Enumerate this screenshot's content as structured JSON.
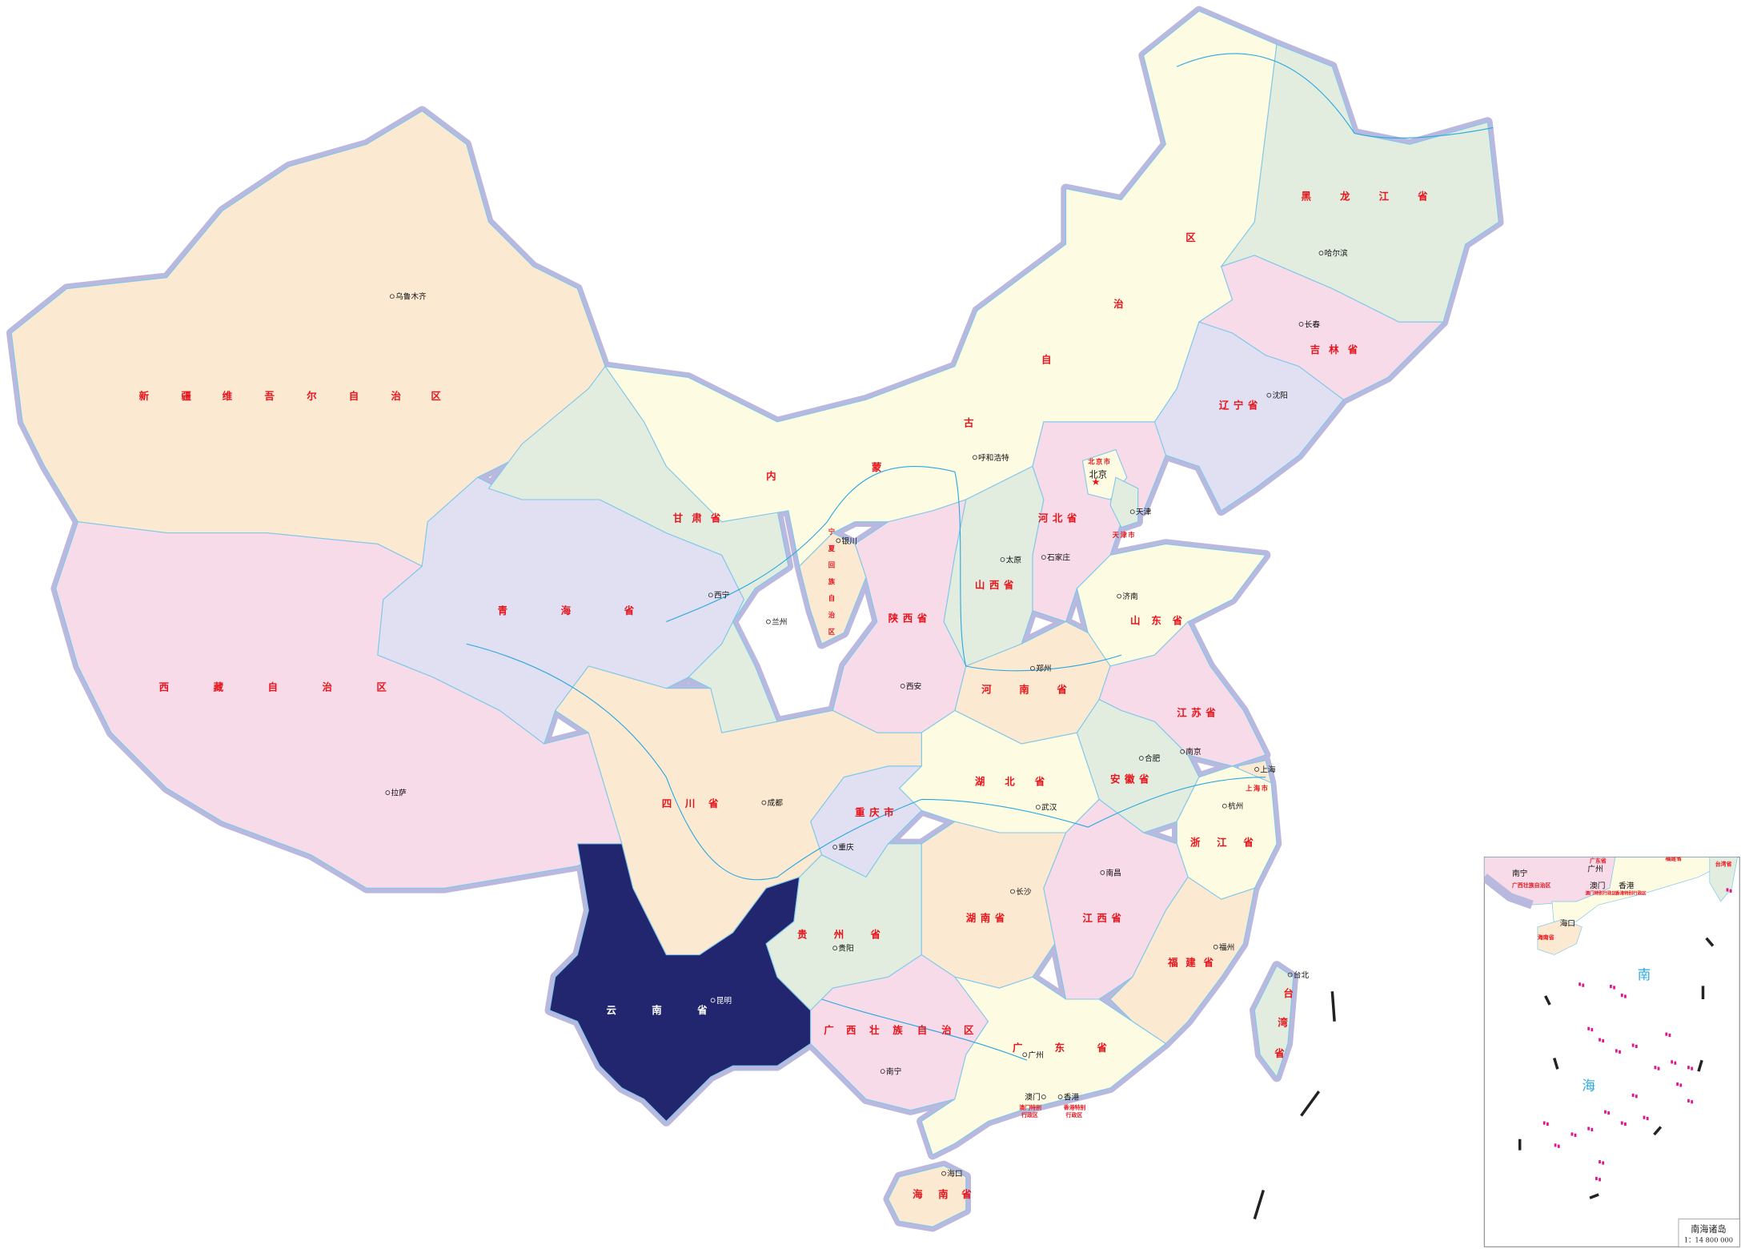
{
  "map": {
    "highlighted_region": "云南省",
    "highlight_color": "#22266e",
    "border_color": "#b9b9df",
    "river_color": "#29a8e0",
    "label_color": "#e8141c"
  },
  "provinces": [
    {
      "id": "xinjiang",
      "label": "新疆维吾尔自治区",
      "color": "#fbe9d2"
    },
    {
      "id": "xizang",
      "label": "西藏自治区",
      "color": "#f7dbe8"
    },
    {
      "id": "qinghai",
      "label": "青海省",
      "color": "#e0e0f2"
    },
    {
      "id": "gansu",
      "label": "甘肃省",
      "color": "#e2ede0"
    },
    {
      "id": "neimenggu",
      "label": "内蒙古自治区",
      "color": "#fefbe3"
    },
    {
      "id": "heilongjiang",
      "label": "黑龙江省",
      "color": "#e2ede0"
    },
    {
      "id": "jilin",
      "label": "吉林省",
      "color": "#f7dbe8"
    },
    {
      "id": "liaoning",
      "label": "辽宁省",
      "color": "#e0e0f2"
    },
    {
      "id": "hebei",
      "label": "河北省",
      "color": "#f7dbe8"
    },
    {
      "id": "beijing",
      "label": "北京市",
      "color": "#fefbe3"
    },
    {
      "id": "tianjin",
      "label": "天津市",
      "color": "#e2ede0"
    },
    {
      "id": "shanxi",
      "label": "山西省",
      "color": "#e2ede0"
    },
    {
      "id": "shaanxi",
      "label": "陕西省",
      "color": "#f7dbe8"
    },
    {
      "id": "ningxia",
      "label": "宁夏回族自治区",
      "color": "#fbe9d2"
    },
    {
      "id": "shandong",
      "label": "山东省",
      "color": "#fefbe3"
    },
    {
      "id": "henan",
      "label": "河南省",
      "color": "#fbe9d2"
    },
    {
      "id": "jiangsu",
      "label": "江苏省",
      "color": "#f7dbe8"
    },
    {
      "id": "anhui",
      "label": "安徽省",
      "color": "#e2ede0"
    },
    {
      "id": "shanghai",
      "label": "上海市",
      "color": "#fbe9d2"
    },
    {
      "id": "zhejiang",
      "label": "浙江省",
      "color": "#fefbe3"
    },
    {
      "id": "hubei",
      "label": "湖北省",
      "color": "#fefbe3"
    },
    {
      "id": "chongqing",
      "label": "重庆市",
      "color": "#e0e0f2"
    },
    {
      "id": "sichuan",
      "label": "四川省",
      "color": "#fbe9d2"
    },
    {
      "id": "yunnan",
      "label": "云南省",
      "color": "#22266e"
    },
    {
      "id": "guizhou",
      "label": "贵州省",
      "color": "#e2ede0"
    },
    {
      "id": "hunan",
      "label": "湖南省",
      "color": "#fbe9d2"
    },
    {
      "id": "jiangxi",
      "label": "江西省",
      "color": "#f7dbe8"
    },
    {
      "id": "fujian",
      "label": "福建省",
      "color": "#fbe9d2"
    },
    {
      "id": "guangxi",
      "label": "广西壮族自治区",
      "color": "#f7dbe8"
    },
    {
      "id": "guangdong",
      "label": "广东省",
      "color": "#fefbe3"
    },
    {
      "id": "hainan",
      "label": "海南省",
      "color": "#fbe9d2"
    },
    {
      "id": "taiwan",
      "label": "台湾省",
      "color": "#e2ede0"
    }
  ],
  "special_regions": {
    "hongkong": "香港特别行政区",
    "macau": "澳门特别行政区"
  },
  "cities": [
    {
      "name": "乌鲁木齐"
    },
    {
      "name": "拉萨"
    },
    {
      "name": "西宁"
    },
    {
      "name": "兰州"
    },
    {
      "name": "银川"
    },
    {
      "name": "呼和浩特"
    },
    {
      "name": "太原"
    },
    {
      "name": "石家庄"
    },
    {
      "name": "北京",
      "capital": true
    },
    {
      "name": "天津"
    },
    {
      "name": "沈阳"
    },
    {
      "name": "长春"
    },
    {
      "name": "哈尔滨"
    },
    {
      "name": "济南"
    },
    {
      "name": "郑州"
    },
    {
      "name": "西安"
    },
    {
      "name": "南京"
    },
    {
      "name": "合肥"
    },
    {
      "name": "上海"
    },
    {
      "name": "杭州"
    },
    {
      "name": "武汉"
    },
    {
      "name": "成都"
    },
    {
      "name": "重庆"
    },
    {
      "name": "贵阳"
    },
    {
      "name": "昆明"
    },
    {
      "name": "南宁"
    },
    {
      "name": "长沙"
    },
    {
      "name": "南昌"
    },
    {
      "name": "福州"
    },
    {
      "name": "台北"
    },
    {
      "name": "广州"
    },
    {
      "name": "澳门"
    },
    {
      "name": "香港"
    },
    {
      "name": "海口"
    }
  ],
  "inset": {
    "title": "南海诸岛",
    "scale": "1：14 800 000",
    "sea_label_1": "南",
    "sea_label_2": "海",
    "cities": [
      "南宁",
      "广州",
      "澳门",
      "香港",
      "海口"
    ],
    "labels": [
      "广西壮族自治区",
      "广东省",
      "海南省",
      "福建省",
      "台湾省",
      "澳门特别行政区",
      "香港特别行政区"
    ]
  }
}
